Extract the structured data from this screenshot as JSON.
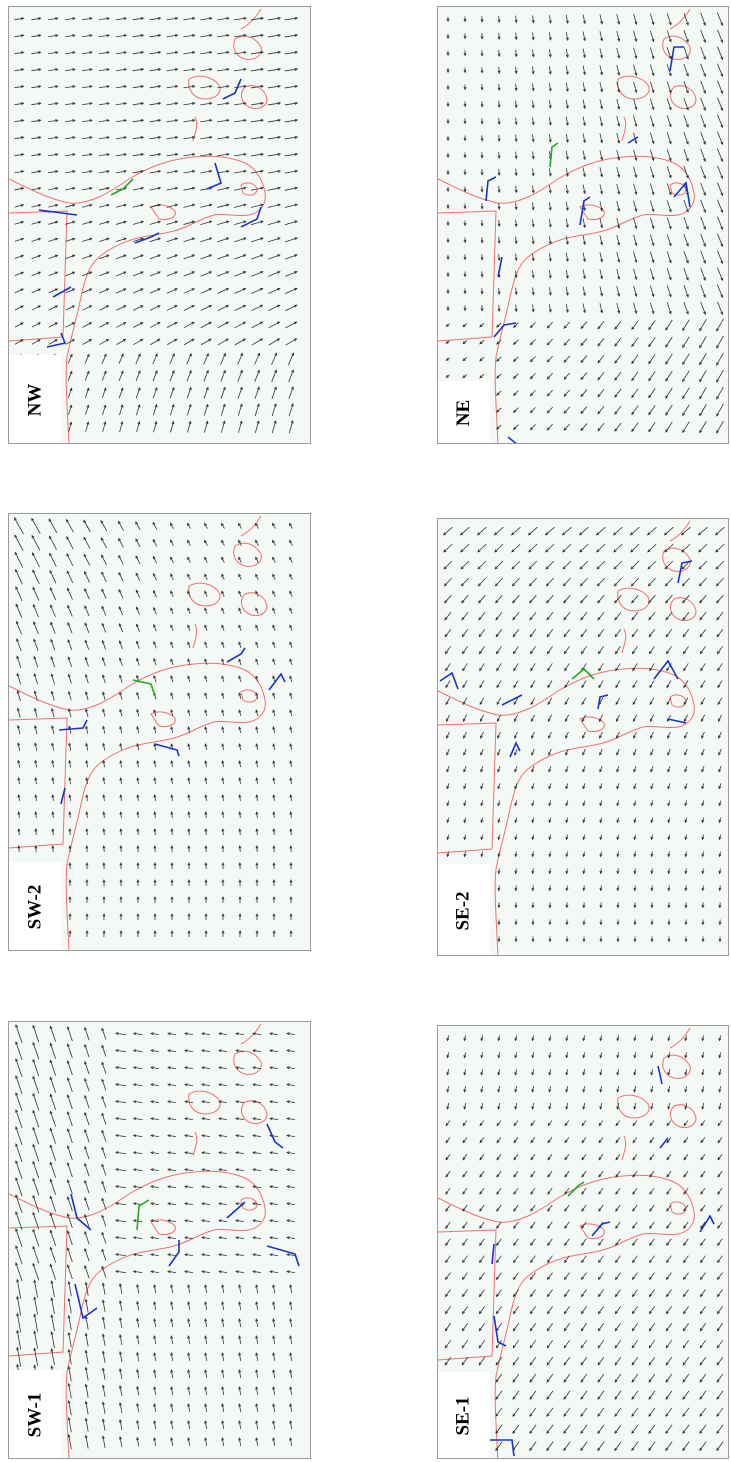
{
  "panels": [
    {
      "id": "nw",
      "label": "NW",
      "flow": "nw"
    },
    {
      "id": "ne",
      "label": "NE",
      "flow": "ne"
    },
    {
      "id": "sw2",
      "label": "SW-2",
      "flow": "sw2"
    },
    {
      "id": "se2",
      "label": "SE-2",
      "flow": "se2"
    },
    {
      "id": "sw1",
      "label": "SW-1",
      "flow": "sw1"
    },
    {
      "id": "se1",
      "label": "SE-1",
      "flow": "se1"
    }
  ],
  "colors": {
    "panel_bg": "#f4f9f5",
    "coastline": "#f07070",
    "arrow": "#333333",
    "barrier": "#1a33cc",
    "barrier_alt": "#22aa22",
    "border": "#9a9a9a"
  }
}
